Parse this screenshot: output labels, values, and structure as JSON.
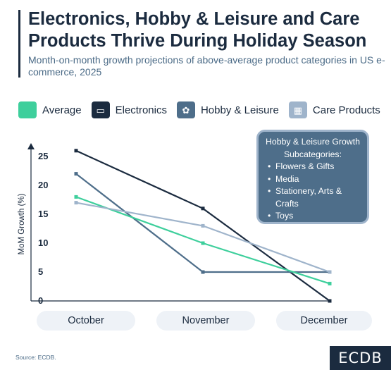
{
  "header": {
    "title": "Electronics, Hobby & Leisure and Care Products Thrive During Holiday Season",
    "subtitle": "Month-on-month growth projections of above-average product categories in US e-commerce, 2025"
  },
  "legend": [
    {
      "label": "Average",
      "color": "#3ecf9c",
      "icon": "square-swatch"
    },
    {
      "label": "Electronics",
      "color": "#1b2b3f",
      "icon": "electronics-icon",
      "glyph": "▭"
    },
    {
      "label": "Hobby & Leisure",
      "color": "#4e6e8a",
      "icon": "hobby-icon",
      "glyph": "✿"
    },
    {
      "label": "Care Products",
      "color": "#9fb4cb",
      "icon": "care-icon",
      "glyph": "▦"
    }
  ],
  "chart_data": {
    "type": "line",
    "categories": [
      "October",
      "November",
      "December"
    ],
    "ylabel": "MoM Growth (%)",
    "xlabel": "",
    "ylim": [
      0,
      27
    ],
    "yticks": [
      "0",
      "5",
      "10",
      "15",
      "20",
      "25"
    ],
    "grid": false,
    "series": [
      {
        "name": "Electronics",
        "color": "#1b2b3f",
        "values": [
          26,
          16,
          0
        ]
      },
      {
        "name": "Hobby & Leisure",
        "color": "#4e6e8a",
        "values": [
          22,
          5,
          5
        ]
      },
      {
        "name": "Average",
        "color": "#3ecf9c",
        "values": [
          18,
          10,
          3
        ]
      },
      {
        "name": "Care Products",
        "color": "#9fb4cb",
        "values": [
          17,
          13,
          5
        ]
      }
    ]
  },
  "note": {
    "title": "Hobby & Leisure Growth Subcategories:",
    "items": [
      "Flowers & Gifts",
      "Media",
      "Stationery, Arts & Crafts",
      "Toys"
    ]
  },
  "footer": {
    "source": "Source: ECDB.",
    "logo": "ECDB"
  }
}
